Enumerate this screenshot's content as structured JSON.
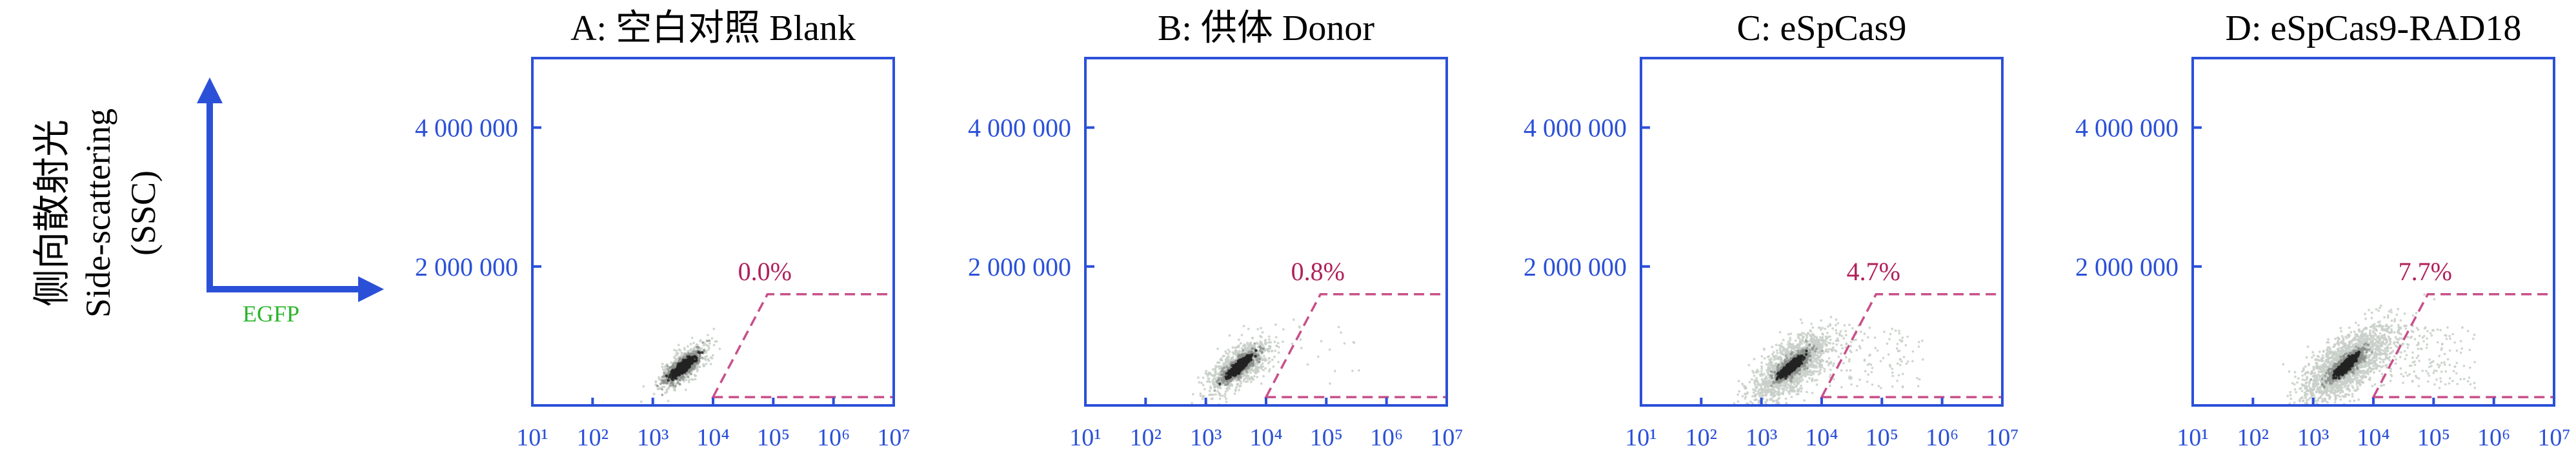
{
  "figure": {
    "ylabel_cn": "侧向散射光",
    "ylabel_en": "Side-scattering",
    "ylabel_abbr": "(SSC)",
    "xlabel": "EGFP",
    "colors": {
      "axis": "#2b50d8",
      "gate": "#c8508a",
      "gate_label": "#b0205a",
      "xlabel": "#2ab52a",
      "title": "#000000",
      "density_core": "#222222",
      "density_halo": "#c8cfc8"
    }
  },
  "chart_data": [
    {
      "type": "scatter",
      "title": "A: 空白对照 Blank",
      "x_scale": "log",
      "xlim": [
        10,
        10000000
      ],
      "ylim": [
        0,
        5000000
      ],
      "x_tick_values": [
        10,
        100,
        1000,
        10000,
        100000,
        1000000,
        10000000
      ],
      "x_tick_labels": [
        "10¹",
        "10²",
        "10³",
        "10⁴",
        "10⁵",
        "10⁶",
        "10⁷"
      ],
      "y_tick_values": [
        2000000,
        4000000
      ],
      "y_tick_labels": [
        "2 000 000",
        "4 000 000"
      ],
      "gate_percent": "0.0%",
      "gate": {
        "x_low": 10000,
        "x_low_top": 80000,
        "x_high": 10000000,
        "y_low": 120000,
        "y_high": 1600000
      },
      "population": {
        "center_log_x": 3.5,
        "center_y": 550000,
        "spread": "tight"
      }
    },
    {
      "type": "scatter",
      "title": "B: 供体 Donor",
      "x_scale": "log",
      "xlim": [
        10,
        10000000
      ],
      "ylim": [
        0,
        5000000
      ],
      "x_tick_values": [
        10,
        100,
        1000,
        10000,
        100000,
        1000000,
        10000000
      ],
      "x_tick_labels": [
        "10¹",
        "10²",
        "10³",
        "10⁴",
        "10⁵",
        "10⁶",
        "10⁷"
      ],
      "y_tick_values": [
        2000000,
        4000000
      ],
      "y_tick_labels": [
        "2 000 000",
        "4 000 000"
      ],
      "gate_percent": "0.8%",
      "gate": {
        "x_low": 10000,
        "x_low_top": 80000,
        "x_high": 10000000,
        "y_low": 120000,
        "y_high": 1600000
      },
      "population": {
        "center_log_x": 3.55,
        "center_y": 560000,
        "spread": "medium"
      }
    },
    {
      "type": "scatter",
      "title": "C: eSpCas9",
      "x_scale": "log",
      "xlim": [
        10,
        10000000
      ],
      "ylim": [
        0,
        5000000
      ],
      "x_tick_values": [
        10,
        100,
        1000,
        10000,
        100000,
        1000000,
        10000000
      ],
      "x_tick_labels": [
        "10¹",
        "10²",
        "10³",
        "10⁴",
        "10⁵",
        "10⁶",
        "10⁷"
      ],
      "y_tick_values": [
        2000000,
        4000000
      ],
      "y_tick_labels": [
        "2 000 000",
        "4 000 000"
      ],
      "gate_percent": "4.7%",
      "gate": {
        "x_low": 10000,
        "x_low_top": 80000,
        "x_high": 10000000,
        "y_low": 120000,
        "y_high": 1600000
      },
      "population": {
        "center_log_x": 3.5,
        "center_y": 560000,
        "spread": "wide"
      }
    },
    {
      "type": "scatter",
      "title": "D: eSpCas9-RAD18",
      "x_scale": "log",
      "xlim": [
        10,
        10000000
      ],
      "ylim": [
        0,
        5000000
      ],
      "x_tick_values": [
        10,
        100,
        1000,
        10000,
        100000,
        1000000,
        10000000
      ],
      "x_tick_labels": [
        "10¹",
        "10²",
        "10³",
        "10⁴",
        "10⁵",
        "10⁶",
        "10⁷"
      ],
      "y_tick_values": [
        2000000,
        4000000
      ],
      "y_tick_labels": [
        "2 000 000",
        "4 000 000"
      ],
      "gate_percent": "7.7%",
      "gate": {
        "x_low": 10000,
        "x_low_top": 80000,
        "x_high": 10000000,
        "y_low": 120000,
        "y_high": 1600000
      },
      "population": {
        "center_log_x": 3.55,
        "center_y": 580000,
        "spread": "wider"
      }
    }
  ]
}
